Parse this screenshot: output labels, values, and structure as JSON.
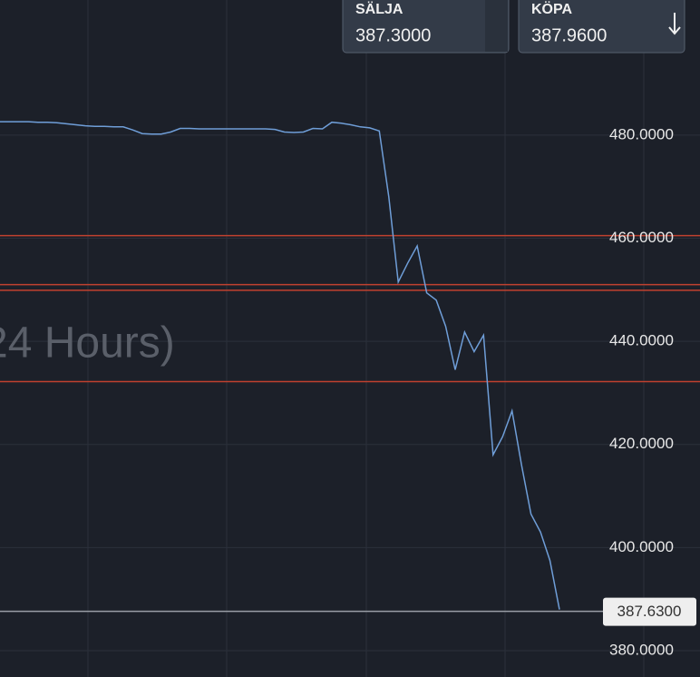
{
  "chart_data": {
    "type": "line",
    "watermark": "24 Hours)",
    "sell": {
      "label": "SÄLJA",
      "price": "387.3000"
    },
    "buy": {
      "label": "KÖPA",
      "price": "387.9600"
    },
    "current_price": {
      "value": 387.63,
      "label": "387.6300"
    },
    "levels": [
      460.5,
      451.0,
      449.9,
      432.2
    ],
    "level_color": "#c0412f",
    "series": [
      {
        "color": "#6f9ed8",
        "values": [
          482.6,
          482.6,
          482.6,
          482.6,
          482.5,
          482.5,
          482.4,
          482.2,
          482.0,
          481.8,
          481.7,
          481.7,
          481.6,
          481.6,
          481.0,
          480.3,
          480.2,
          480.2,
          480.6,
          481.3,
          481.3,
          481.2,
          481.2,
          481.2,
          481.2,
          481.2,
          481.2,
          481.2,
          481.2,
          481.1,
          480.6,
          480.5,
          480.6,
          481.3,
          481.2,
          482.5,
          482.3,
          482.0,
          481.6,
          481.4,
          480.8,
          468.0,
          451.5,
          455.2,
          458.5,
          449.4,
          448.0,
          442.9,
          434.5,
          441.8,
          438.0,
          441.2,
          418.0,
          421.5,
          426.5,
          416.0,
          406.5,
          403.0,
          397.5,
          388.0
        ]
      }
    ],
    "ylim": [
      374.9,
      506.2
    ],
    "yticks": [
      {
        "value": 480,
        "label": "480.0000"
      },
      {
        "value": 460,
        "label": "460.0000"
      },
      {
        "value": 440,
        "label": "440.0000"
      },
      {
        "value": 420,
        "label": "420.0000"
      },
      {
        "value": 400,
        "label": "400.0000"
      },
      {
        "value": 380,
        "label": "380.0000"
      }
    ],
    "grid": true
  }
}
